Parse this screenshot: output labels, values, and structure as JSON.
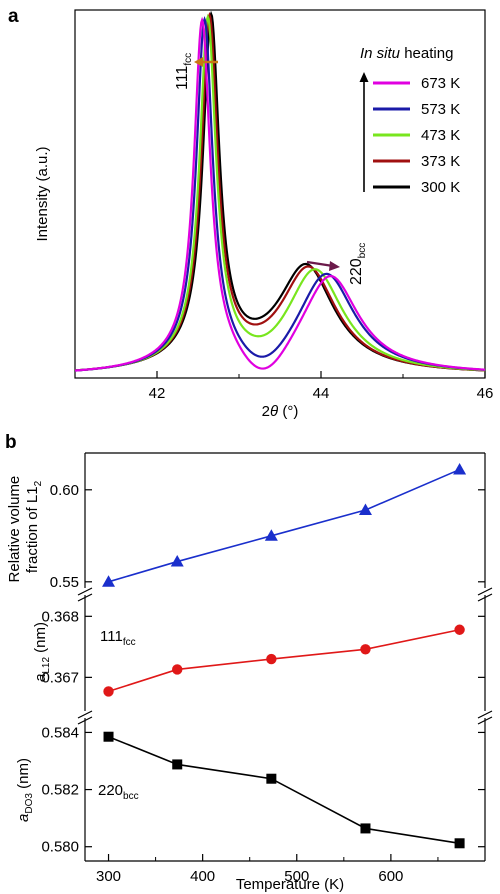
{
  "chart_data": [
    {
      "panel": "a",
      "type": "line",
      "xlabel": "2θ (°)",
      "ylabel": "Intensity (a.u.)",
      "xlim": [
        41,
        46
      ],
      "xticks": [
        42,
        44,
        46
      ],
      "ylim": [
        0,
        100
      ],
      "yticks_visible": false,
      "legend": {
        "title": "In situ heating",
        "placement": "top-right",
        "arrow": "upward"
      },
      "annotations": [
        {
          "text": "111",
          "subscript": "fcc",
          "arrow": "left",
          "arrow_color": "#c87814"
        },
        {
          "text": "220",
          "subscript": "bcc",
          "arrow": "right",
          "arrow_color": "#6b1a4a"
        }
      ],
      "series": [
        {
          "name": "673 K",
          "color": "#e000e0",
          "peak1": 42.55,
          "peak1_height": 91,
          "peak2": 44.12,
          "peak2_height": 26,
          "valley": 6.2
        },
        {
          "name": "573 K",
          "color": "#1a1aa8",
          "peak1": 42.58,
          "peak1_height": 91,
          "peak2": 44.07,
          "peak2_height": 26.5,
          "valley": 8.5
        },
        {
          "name": "473 K",
          "color": "#78e61e",
          "peak1": 42.62,
          "peak1_height": 91,
          "peak2": 43.93,
          "peak2_height": 27.5,
          "valley": 11.5
        },
        {
          "name": "373 K",
          "color": "#a01010",
          "peak1": 42.64,
          "peak1_height": 91,
          "peak2": 43.85,
          "peak2_height": 28,
          "valley": 13
        },
        {
          "name": "300 K",
          "color": "#000000",
          "peak1": 42.66,
          "peak1_height": 91,
          "peak2": 43.82,
          "peak2_height": 28.5,
          "valley": 13.5
        }
      ]
    },
    {
      "panel": "b",
      "type": "line",
      "xlabel": "Temperature (K)",
      "xlim": [
        275,
        700
      ],
      "xticks": [
        300,
        400,
        500,
        600
      ],
      "subplots": [
        {
          "ylabel": "Relative volume fraction of L1",
          "ylabel_subscript": "2",
          "ylim": [
            0.545,
            0.62
          ],
          "yticks": [
            "0.55",
            "0.60"
          ],
          "ytick_values": [
            0.55,
            0.6
          ],
          "marker": "triangle",
          "color": "#1a2fcc",
          "x": [
            300,
            373,
            473,
            573,
            673
          ],
          "y": [
            0.55,
            0.561,
            0.575,
            0.589,
            0.611
          ]
        },
        {
          "ylabel": "a",
          "ylabel_subscript": "L12",
          "ylabel_unit": "(nm)",
          "label": "111",
          "label_subscript": "fcc",
          "ylim": [
            0.3664,
            0.3683
          ],
          "yticks": [
            "0.367",
            "0.368"
          ],
          "ytick_values": [
            0.367,
            0.368
          ],
          "marker": "circle",
          "color": "#e01818",
          "x": [
            300,
            373,
            473,
            573,
            673
          ],
          "y": [
            0.36677,
            0.36713,
            0.3673,
            0.36746,
            0.36778
          ]
        },
        {
          "ylabel": "a",
          "ylabel_subscript": "DO3",
          "ylabel_unit": "(nm)",
          "label": "220",
          "label_subscript": "bcc",
          "ylim": [
            0.5795,
            0.5844
          ],
          "yticks": [
            "0.580",
            "0.582",
            "0.584"
          ],
          "ytick_values": [
            0.58,
            0.582,
            0.584
          ],
          "marker": "square",
          "color": "#000000",
          "x": [
            300,
            373,
            473,
            573,
            673
          ],
          "y": [
            0.58385,
            0.58288,
            0.58238,
            0.58064,
            0.58012
          ]
        }
      ]
    }
  ]
}
